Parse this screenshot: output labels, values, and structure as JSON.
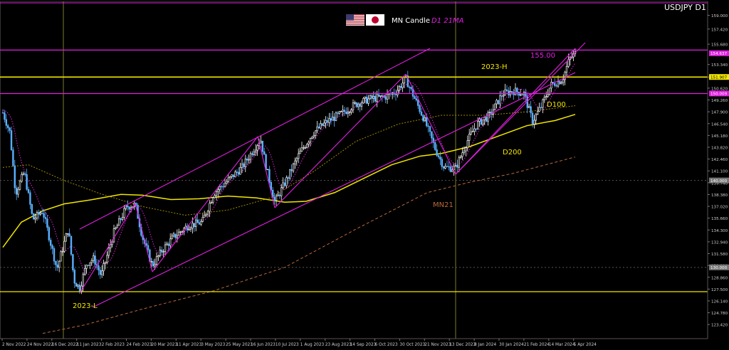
{
  "chart_data": {
    "type": "candlestick",
    "symbol": "USDJPY D1",
    "header": {
      "text": "MN Candle",
      "overlay_text": "D1 21MA",
      "flags": [
        "us-flag-icon",
        "japan-flag-icon"
      ]
    },
    "yaxis": {
      "ticks": [
        "159.000",
        "157.420",
        "155.680",
        "153.340",
        "151.900",
        "150.620",
        "149.260",
        "147.900",
        "146.540",
        "145.180",
        "143.820",
        "142.460",
        "141.100",
        "139.740",
        "138.380",
        "137.020",
        "135.660",
        "134.300",
        "132.940",
        "131.580",
        "130.220",
        "128.860",
        "127.500",
        "126.140",
        "124.780",
        "123.420"
      ],
      "ylim": [
        121.8,
        160.6
      ]
    },
    "xaxis": {
      "ticks": [
        "2 Nov 2022",
        "24 Nov 2022",
        "16 Dec 2022",
        "11 Jan 2023",
        "2 Feb 2023",
        "24 Feb 2023",
        "20 Mar 2023",
        "11 Apr 2023",
        "3 May 2023",
        "25 May 2023",
        "16 Jun 2023",
        "10 Jul 2023",
        "1 Aug 2023",
        "23 Aug 2023",
        "14 Sep 2023",
        "6 Oct 2023",
        "30 Oct 2023",
        "21 Nov 2023",
        "13 Dec 2023",
        "8 Jan 2024",
        "30 Jan 2024",
        "21 Feb 2024",
        "14 Mar 2024",
        "5 Apr 2024"
      ]
    },
    "price_tags": [
      "154.637",
      "151.907",
      "150.009",
      "140.000",
      "130.000"
    ],
    "annotations": {
      "level_155": "155.00",
      "high_2023": "2023-H",
      "low_2023": "2023-L",
      "d100": "D100",
      "d200": "D200",
      "mn21": "MN21"
    },
    "levels": {
      "magenta": [
        155.0,
        150.0
      ],
      "yellow": [
        151.9,
        127.2
      ],
      "gray": [
        140.0,
        130.0
      ]
    },
    "candles_ohlc_summary": "daily USDJPY from Nov 2022 to Apr 2024: highs ~151.9 (Oct 2023), low ~127.2 (Jan 2023), last ~154.6",
    "colors": {
      "background": "#000000",
      "bull": "#ffffff",
      "bear": "#5ab0ff",
      "magenta": "#e020e0",
      "yellow": "#f2e600",
      "d100": "#f2e600",
      "d200_dotted": "#a08a00",
      "mn21": "#b86a3a",
      "gray": "#555555"
    }
  }
}
